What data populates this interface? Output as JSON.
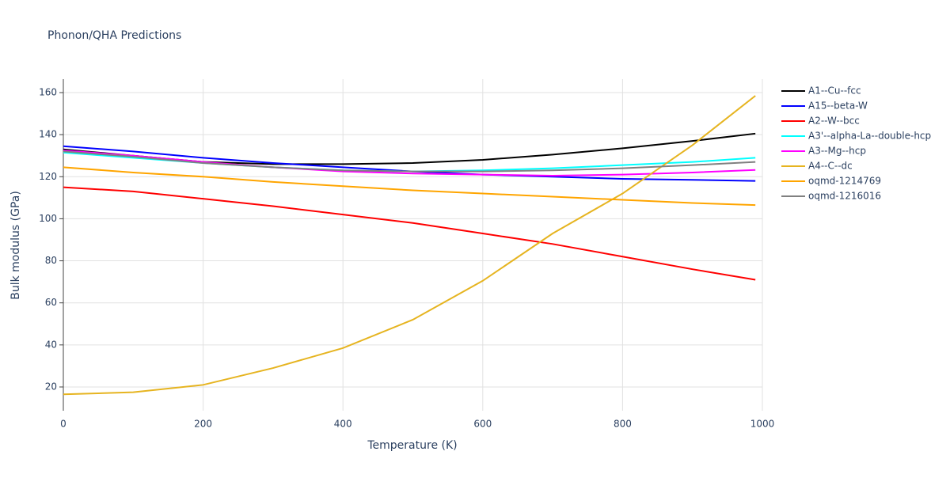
{
  "chart_data": {
    "type": "line",
    "title": "Phonon/QHA Predictions",
    "x_label": "Temperature (K)",
    "y_label": "Bulk modulus (GPa)",
    "x": [
      0,
      100,
      200,
      300,
      400,
      500,
      600,
      700,
      800,
      900,
      990
    ],
    "series": [
      {
        "name": "A1--Cu--fcc",
        "color": "#000000",
        "values": [
          133,
          130,
          127,
          126,
          126,
          126.5,
          128,
          130.5,
          133.5,
          137,
          140.5
        ]
      },
      {
        "name": "A15--beta-W",
        "color": "#0000ff",
        "values": [
          134.5,
          132,
          129,
          126.5,
          124.5,
          122.5,
          121,
          120,
          119,
          118.5,
          118
        ]
      },
      {
        "name": "A2--W--bcc",
        "color": "#ff0000",
        "values": [
          115,
          113,
          109.5,
          106,
          102,
          98,
          93,
          88,
          82,
          76,
          71
        ]
      },
      {
        "name": "A3'--alpha-La--double-hcp",
        "color": "#00ffff",
        "values": [
          131.5,
          129,
          126.5,
          124.5,
          123,
          122.5,
          123,
          124,
          125.5,
          127,
          129
        ]
      },
      {
        "name": "A3--Mg--hcp",
        "color": "#ff00ff",
        "values": [
          132.5,
          130,
          127,
          124.5,
          122.5,
          121.5,
          121,
          120.5,
          121,
          122,
          123.2
        ]
      },
      {
        "name": "A4--C--dc",
        "color": "#e6b420",
        "values": [
          16.5,
          17.5,
          21,
          29,
          38.5,
          52,
          70.5,
          93,
          112,
          135,
          158.5
        ]
      },
      {
        "name": "oqmd-1214769",
        "color": "#ffa500",
        "values": [
          124.5,
          122,
          120,
          117.5,
          115.5,
          113.5,
          112,
          110.5,
          109,
          107.5,
          106.5
        ]
      },
      {
        "name": "oqmd-1216016",
        "color": "#808080",
        "values": [
          132,
          129.5,
          126.5,
          124.5,
          123,
          122.5,
          122.5,
          123,
          124,
          125.5,
          127
        ]
      }
    ],
    "xlim": [
      0,
      1000
    ],
    "xticks": [
      0,
      200,
      400,
      600,
      800,
      1000
    ],
    "ylim": [
      8.7,
      166.4
    ],
    "yticks": [
      20,
      40,
      60,
      80,
      100,
      120,
      140,
      160
    ],
    "grid": true,
    "legend": "right"
  }
}
